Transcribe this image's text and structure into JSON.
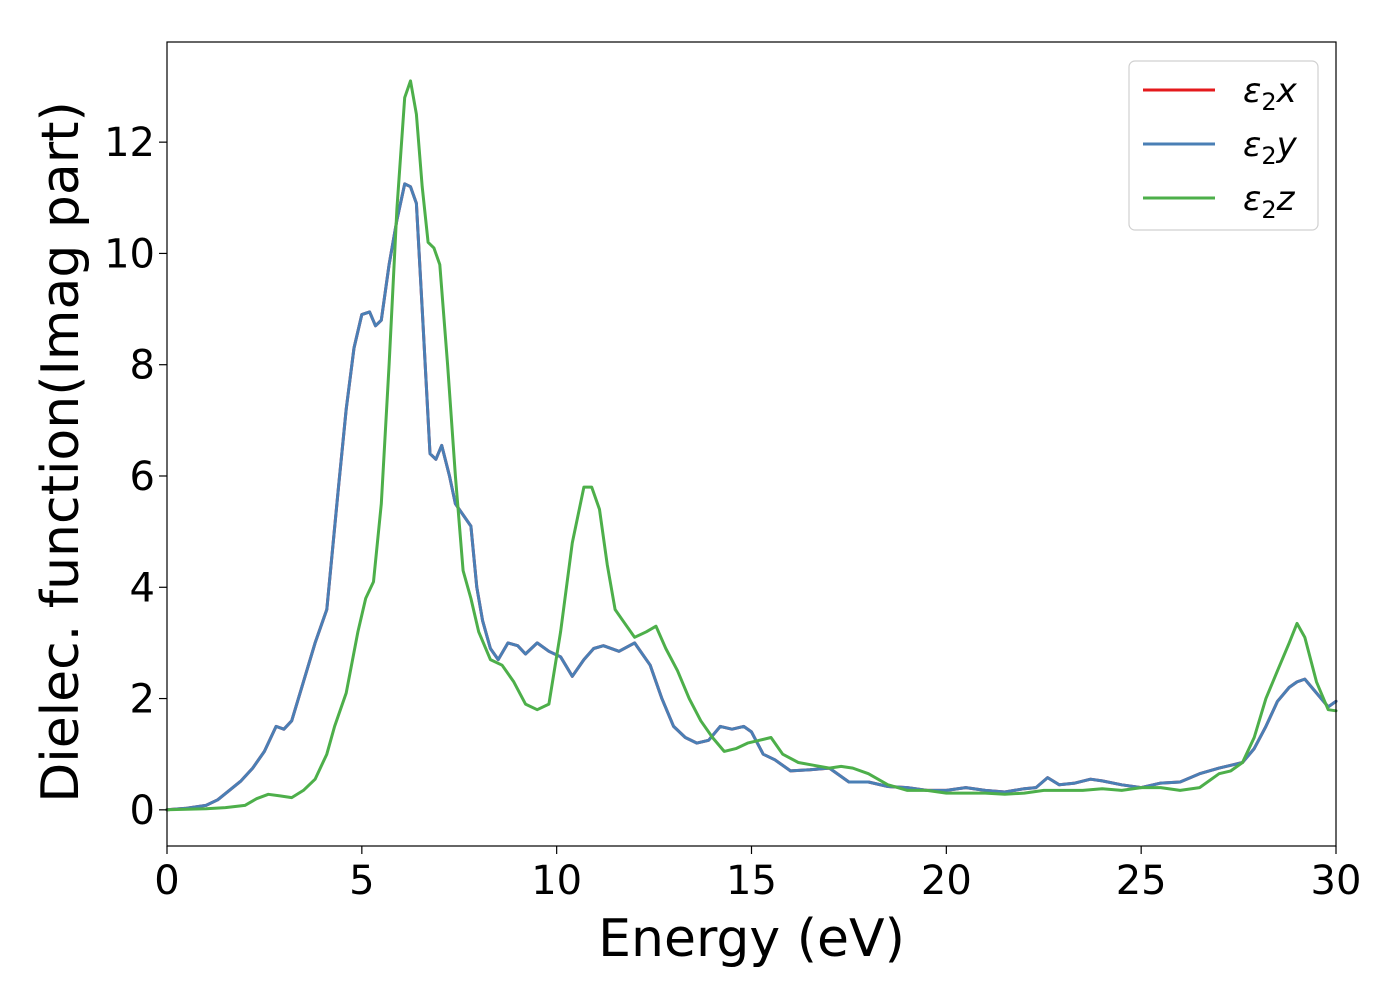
{
  "chart_data": {
    "type": "line",
    "title": "",
    "xlabel": "Energy (eV)",
    "ylabel": "Dielec. function(Imag part)",
    "xlim": [
      0,
      30
    ],
    "ylim": [
      -0.65,
      13.8
    ],
    "xticks": [
      0,
      5,
      10,
      15,
      20,
      25,
      30
    ],
    "yticks": [
      0,
      2,
      4,
      6,
      8,
      10,
      12
    ],
    "grid": false,
    "legend_position": "top-right",
    "series": [
      {
        "name": "ε₂x",
        "legend_base": "ε",
        "legend_sub": "2",
        "legend_var": "x",
        "color": "#e41a1c",
        "x": [
          0,
          0.5,
          1,
          1.3,
          1.6,
          1.9,
          2.2,
          2.5,
          2.8,
          3.0,
          3.2,
          3.5,
          3.8,
          4.1,
          4.4,
          4.6,
          4.8,
          5.0,
          5.2,
          5.35,
          5.5,
          5.7,
          5.9,
          6.1,
          6.25,
          6.4,
          6.55,
          6.75,
          6.9,
          7.05,
          7.25,
          7.4,
          7.6,
          7.8,
          7.95,
          8.1,
          8.3,
          8.5,
          8.75,
          9.0,
          9.2,
          9.5,
          9.8,
          10.1,
          10.4,
          10.7,
          10.95,
          11.2,
          11.6,
          12.0,
          12.4,
          12.7,
          13.0,
          13.3,
          13.6,
          13.9,
          14.2,
          14.5,
          14.8,
          15.0,
          15.3,
          15.6,
          16.0,
          16.5,
          17.0,
          17.5,
          18.0,
          18.5,
          19.0,
          19.5,
          20.0,
          20.5,
          21.0,
          21.5,
          22.0,
          22.3,
          22.6,
          22.9,
          23.3,
          23.7,
          24.0,
          24.5,
          25.0,
          25.5,
          26.0,
          26.5,
          27.0,
          27.3,
          27.6,
          27.9,
          28.2,
          28.5,
          28.8,
          29.0,
          29.2,
          29.5,
          29.8,
          30.0
        ],
        "values": [
          0,
          0.03,
          0.08,
          0.18,
          0.35,
          0.52,
          0.75,
          1.05,
          1.5,
          1.45,
          1.6,
          2.3,
          3.0,
          3.6,
          5.8,
          7.2,
          8.3,
          8.9,
          8.95,
          8.7,
          8.8,
          9.8,
          10.6,
          11.25,
          11.2,
          10.9,
          9.0,
          6.4,
          6.3,
          6.55,
          6.0,
          5.5,
          5.3,
          5.1,
          4.0,
          3.4,
          2.9,
          2.7,
          3.0,
          2.95,
          2.8,
          3.0,
          2.85,
          2.75,
          2.4,
          2.7,
          2.9,
          2.95,
          2.85,
          3.0,
          2.6,
          2.0,
          1.5,
          1.3,
          1.2,
          1.25,
          1.5,
          1.45,
          1.5,
          1.4,
          1.0,
          0.9,
          0.7,
          0.72,
          0.75,
          0.5,
          0.5,
          0.42,
          0.4,
          0.35,
          0.35,
          0.4,
          0.35,
          0.32,
          0.38,
          0.4,
          0.58,
          0.45,
          0.48,
          0.55,
          0.52,
          0.45,
          0.4,
          0.48,
          0.5,
          0.65,
          0.75,
          0.8,
          0.85,
          1.1,
          1.5,
          1.95,
          2.2,
          2.3,
          2.35,
          2.1,
          1.85,
          1.95
        ]
      },
      {
        "name": "ε₂y",
        "legend_base": "ε",
        "legend_sub": "2",
        "legend_var": "y",
        "color": "#4a7fb5",
        "x": [
          0,
          0.5,
          1,
          1.3,
          1.6,
          1.9,
          2.2,
          2.5,
          2.8,
          3.0,
          3.2,
          3.5,
          3.8,
          4.1,
          4.4,
          4.6,
          4.8,
          5.0,
          5.2,
          5.35,
          5.5,
          5.7,
          5.9,
          6.1,
          6.25,
          6.4,
          6.55,
          6.75,
          6.9,
          7.05,
          7.25,
          7.4,
          7.6,
          7.8,
          7.95,
          8.1,
          8.3,
          8.5,
          8.75,
          9.0,
          9.2,
          9.5,
          9.8,
          10.1,
          10.4,
          10.7,
          10.95,
          11.2,
          11.6,
          12.0,
          12.4,
          12.7,
          13.0,
          13.3,
          13.6,
          13.9,
          14.2,
          14.5,
          14.8,
          15.0,
          15.3,
          15.6,
          16.0,
          16.5,
          17.0,
          17.5,
          18.0,
          18.5,
          19.0,
          19.5,
          20.0,
          20.5,
          21.0,
          21.5,
          22.0,
          22.3,
          22.6,
          22.9,
          23.3,
          23.7,
          24.0,
          24.5,
          25.0,
          25.5,
          26.0,
          26.5,
          27.0,
          27.3,
          27.6,
          27.9,
          28.2,
          28.5,
          28.8,
          29.0,
          29.2,
          29.5,
          29.8,
          30.0
        ],
        "values": [
          0,
          0.03,
          0.08,
          0.18,
          0.35,
          0.52,
          0.75,
          1.05,
          1.5,
          1.45,
          1.6,
          2.3,
          3.0,
          3.6,
          5.8,
          7.2,
          8.3,
          8.9,
          8.95,
          8.7,
          8.8,
          9.8,
          10.6,
          11.25,
          11.2,
          10.9,
          9.0,
          6.4,
          6.3,
          6.55,
          6.0,
          5.5,
          5.3,
          5.1,
          4.0,
          3.4,
          2.9,
          2.7,
          3.0,
          2.95,
          2.8,
          3.0,
          2.85,
          2.75,
          2.4,
          2.7,
          2.9,
          2.95,
          2.85,
          3.0,
          2.6,
          2.0,
          1.5,
          1.3,
          1.2,
          1.25,
          1.5,
          1.45,
          1.5,
          1.4,
          1.0,
          0.9,
          0.7,
          0.72,
          0.75,
          0.5,
          0.5,
          0.42,
          0.4,
          0.35,
          0.35,
          0.4,
          0.35,
          0.32,
          0.38,
          0.4,
          0.58,
          0.45,
          0.48,
          0.55,
          0.52,
          0.45,
          0.4,
          0.48,
          0.5,
          0.65,
          0.75,
          0.8,
          0.85,
          1.1,
          1.5,
          1.95,
          2.2,
          2.3,
          2.35,
          2.1,
          1.85,
          1.95
        ]
      },
      {
        "name": "ε₂z",
        "legend_base": "ε",
        "legend_sub": "2",
        "legend_var": "z",
        "color": "#4daf4a",
        "x": [
          0,
          1,
          1.5,
          2.0,
          2.3,
          2.6,
          2.9,
          3.2,
          3.5,
          3.8,
          4.1,
          4.3,
          4.6,
          4.9,
          5.1,
          5.3,
          5.5,
          5.7,
          5.9,
          6.1,
          6.25,
          6.4,
          6.55,
          6.7,
          6.85,
          7.0,
          7.2,
          7.4,
          7.6,
          7.8,
          8.0,
          8.3,
          8.6,
          8.9,
          9.2,
          9.5,
          9.8,
          10.1,
          10.4,
          10.7,
          10.9,
          11.1,
          11.3,
          11.5,
          11.7,
          12.0,
          12.3,
          12.55,
          12.8,
          13.1,
          13.4,
          13.7,
          14.0,
          14.3,
          14.6,
          14.9,
          15.2,
          15.5,
          15.8,
          16.2,
          16.6,
          17.0,
          17.3,
          17.6,
          18.0,
          18.5,
          19.0,
          19.5,
          20.0,
          20.5,
          21.0,
          21.5,
          22.0,
          22.5,
          23.0,
          23.5,
          24.0,
          24.5,
          25.0,
          25.5,
          26.0,
          26.5,
          27.0,
          27.3,
          27.6,
          27.9,
          28.2,
          28.5,
          28.8,
          29.0,
          29.2,
          29.5,
          29.8,
          30.0
        ],
        "values": [
          0,
          0.02,
          0.04,
          0.08,
          0.2,
          0.28,
          0.25,
          0.22,
          0.35,
          0.55,
          1.0,
          1.5,
          2.1,
          3.2,
          3.8,
          4.1,
          5.5,
          8.0,
          10.8,
          12.8,
          13.1,
          12.5,
          11.2,
          10.2,
          10.1,
          9.8,
          8.0,
          6.0,
          4.3,
          3.8,
          3.2,
          2.7,
          2.6,
          2.3,
          1.9,
          1.8,
          1.9,
          3.2,
          4.8,
          5.8,
          5.8,
          5.4,
          4.4,
          3.6,
          3.4,
          3.1,
          3.2,
          3.3,
          2.9,
          2.5,
          2.0,
          1.6,
          1.3,
          1.05,
          1.1,
          1.2,
          1.25,
          1.3,
          1.0,
          0.85,
          0.8,
          0.75,
          0.78,
          0.75,
          0.65,
          0.45,
          0.35,
          0.35,
          0.3,
          0.3,
          0.3,
          0.28,
          0.3,
          0.35,
          0.35,
          0.35,
          0.38,
          0.35,
          0.4,
          0.4,
          0.35,
          0.4,
          0.65,
          0.7,
          0.85,
          1.3,
          2.0,
          2.5,
          3.0,
          3.35,
          3.1,
          2.3,
          1.8,
          1.78
        ]
      }
    ]
  }
}
